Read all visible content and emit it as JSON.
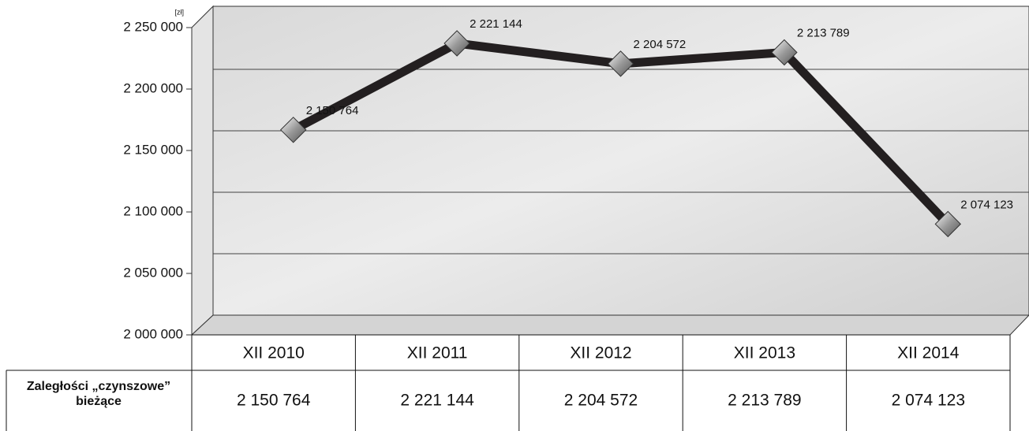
{
  "chart_data": {
    "type": "line",
    "unit": "[zł]",
    "categories": [
      "XII 2010",
      "XII 2011",
      "XII 2012",
      "XII 2013",
      "XII 2014"
    ],
    "values": [
      2150764,
      2221144,
      2204572,
      2213789,
      2074123
    ],
    "value_labels": [
      "2 150 764",
      "2 221 144",
      "2 204 572",
      "2 213 789",
      "2 074 123"
    ],
    "row_label": "Zaległości „czynszowe” bieżące",
    "color": "#231f20",
    "ylim": [
      2000000,
      2250000
    ],
    "yticks": [
      {
        "value": 2000000,
        "label": "2 000 000"
      },
      {
        "value": 2050000,
        "label": "2 050 000"
      },
      {
        "value": 2100000,
        "label": "2 100 000"
      },
      {
        "value": 2150000,
        "label": "2 150 000"
      },
      {
        "value": 2200000,
        "label": "2 200 000"
      },
      {
        "value": 2250000,
        "label": "2 250 000"
      }
    ],
    "grid": true
  }
}
